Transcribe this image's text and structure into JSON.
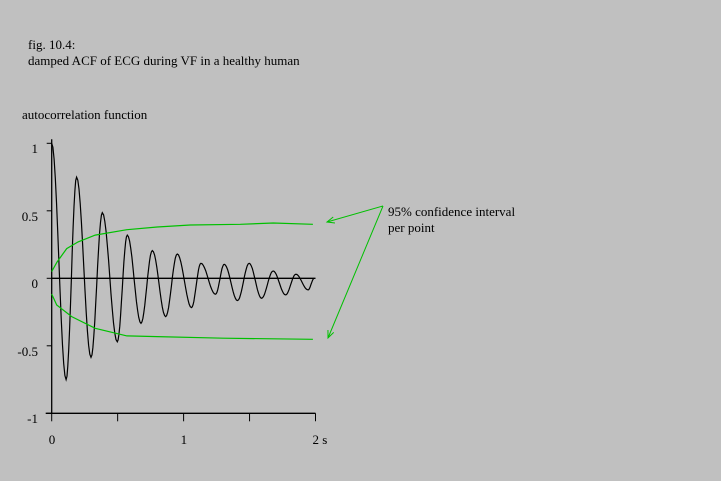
{
  "caption": {
    "line1": "fig. 10.4:",
    "line2": "damped ACF of ECG during VF in a healthy human"
  },
  "chart_data": {
    "type": "line",
    "ylabel": "autocorrelation function",
    "xlim": [
      0,
      2
    ],
    "ylim": [
      -1,
      1
    ],
    "x_ticks": [
      0,
      0.5,
      1,
      1.5,
      2
    ],
    "x_tick_labels": [
      {
        "value": 0,
        "label": "0"
      },
      {
        "value": 1,
        "label": "1"
      },
      {
        "value": 2,
        "label": "2 s"
      }
    ],
    "y_tick_labels": [
      {
        "value": 1,
        "label": "1"
      },
      {
        "value": 0.5,
        "label": "0.5"
      },
      {
        "value": 0,
        "label": "0"
      },
      {
        "value": -0.5,
        "label": "-0.5"
      },
      {
        "value": -1,
        "label": "-1"
      }
    ],
    "grid": false,
    "series": [
      {
        "role": "acf",
        "color": "#000000",
        "extrema": [
          [
            0,
            1
          ],
          [
            0.109,
            -0.75
          ],
          [
            0.189,
            0.75
          ],
          [
            0.298,
            -0.585
          ],
          [
            0.384,
            0.486
          ],
          [
            0.497,
            -0.47
          ],
          [
            0.573,
            0.32
          ],
          [
            0.677,
            -0.333
          ],
          [
            0.763,
            0.205
          ],
          [
            0.864,
            -0.284
          ],
          [
            0.952,
            0.18
          ],
          [
            1.06,
            -0.217
          ],
          [
            1.131,
            0.111
          ],
          [
            1.242,
            -0.118
          ],
          [
            1.308,
            0.104
          ],
          [
            1.409,
            -0.165
          ],
          [
            1.497,
            0.111
          ],
          [
            1.591,
            -0.148
          ],
          [
            1.679,
            0.054
          ],
          [
            1.773,
            -0.123
          ],
          [
            1.851,
            0.03
          ],
          [
            1.944,
            -0.086
          ],
          [
            1.99,
            0
          ]
        ]
      },
      {
        "role": "upper-confidence",
        "color": "#00c000",
        "points": [
          [
            0,
            0.05
          ],
          [
            0.04,
            0.12
          ],
          [
            0.114,
            0.22
          ],
          [
            0.2,
            0.27
          ],
          [
            0.33,
            0.32
          ],
          [
            0.57,
            0.36
          ],
          [
            0.8,
            0.38
          ],
          [
            1.05,
            0.395
          ],
          [
            1.43,
            0.4
          ],
          [
            1.68,
            0.41
          ],
          [
            1.98,
            0.4
          ]
        ]
      },
      {
        "role": "lower-confidence",
        "color": "#00c000",
        "points": [
          [
            0,
            -0.116
          ],
          [
            0.038,
            -0.198
          ],
          [
            0.152,
            -0.284
          ],
          [
            0.33,
            -0.37
          ],
          [
            0.57,
            -0.427
          ],
          [
            0.8,
            -0.432
          ],
          [
            1.3,
            -0.444
          ],
          [
            1.98,
            -0.452
          ]
        ]
      }
    ],
    "annotation": {
      "line1": "95% confidence interval",
      "line2": "per point",
      "color": "#00c000"
    }
  }
}
